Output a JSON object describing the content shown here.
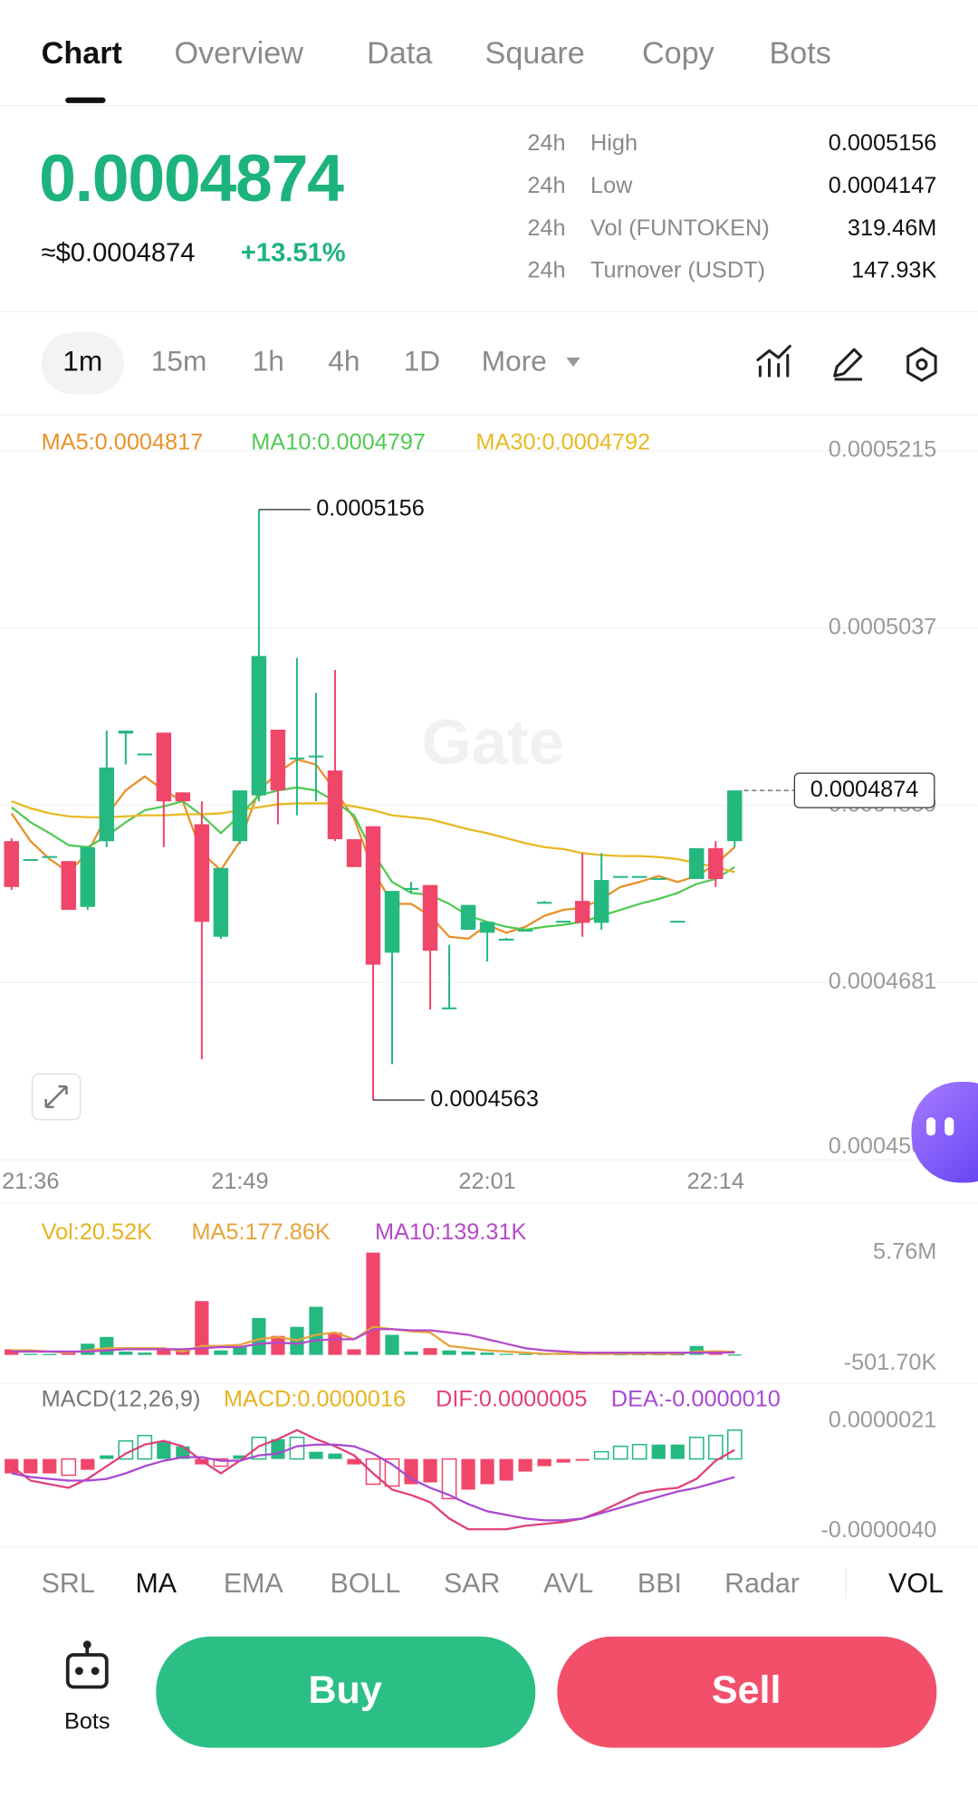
{
  "tabs": [
    "Chart",
    "Overview",
    "Data",
    "Square",
    "Copy",
    "Bots"
  ],
  "price": {
    "last": "0.0004874",
    "usd": "≈$0.0004874",
    "change": "+13.51%"
  },
  "stats": [
    {
      "period": "24h",
      "label": "High",
      "value": "0.0005156"
    },
    {
      "period": "24h",
      "label": "Low",
      "value": "0.0004147"
    },
    {
      "period": "24h",
      "label": "Vol (FUNTOKEN)",
      "value": "319.46M"
    },
    {
      "period": "24h",
      "label": "Turnover (USDT)",
      "value": "147.93K"
    }
  ],
  "intervals": [
    "1m",
    "15m",
    "1h",
    "4h",
    "1D",
    "More"
  ],
  "indicators": [
    "SRL",
    "MA",
    "EMA",
    "BOLL",
    "SAR",
    "AVL",
    "BBI",
    "Radar",
    "VOL"
  ],
  "footer": {
    "bots": "Bots",
    "buy": "Buy",
    "sell": "Sell"
  },
  "chart_data": [
    {
      "type": "candlestick",
      "watermark": "Gate",
      "up_color": "#25b87f",
      "down_color": "#f0466a",
      "categories": [
        null,
        "21:36",
        null,
        null,
        null,
        null,
        null,
        null,
        null,
        null,
        null,
        null,
        "21:49",
        null,
        null,
        null,
        null,
        null,
        null,
        null,
        null,
        null,
        null,
        null,
        null,
        "22:01",
        null,
        null,
        null,
        null,
        null,
        null,
        null,
        null,
        null,
        null,
        null,
        "22:14",
        null
      ],
      "open": [
        0.0004823,
        0.0004804,
        0.0004807,
        0.0004803,
        0.0004757,
        0.0004823,
        0.0004931,
        0.000491,
        0.0004932,
        0.0004872,
        0.000484,
        0.0004727,
        0.0004823,
        0.0004869,
        0.0004935,
        0.0004906,
        0.0004908,
        0.0004894,
        0.0004825,
        0.0004838,
        0.0004711,
        0.0004775,
        0.0004779,
        0.0004655,
        0.0004734,
        0.0004731,
        0.0004725,
        0.0004733,
        0.0004761,
        0.0004743,
        0.0004763,
        0.0004741,
        0.0004788,
        0.0004788,
        0.0004786,
        0.0004742,
        0.0004785,
        0.0004816,
        0.0004823
      ],
      "high": [
        0.0004826,
        0.0004805,
        0.0004808,
        0.0004803,
        0.0004817,
        0.0004934,
        0.0004934,
        0.0004911,
        0.0004932,
        0.0004872,
        0.0004863,
        0.0004796,
        0.0004874,
        0.0005156,
        0.0004935,
        0.0005007,
        0.0004972,
        0.0004995,
        0.0004825,
        0.0004838,
        0.0004773,
        0.0004782,
        0.0004779,
        0.0004719,
        0.0004759,
        0.0004742,
        0.0004726,
        0.0004734,
        0.0004763,
        0.0004743,
        0.0004811,
        0.0004811,
        0.0004788,
        0.0004788,
        0.0004786,
        0.0004743,
        0.0004816,
        0.0004823,
        0.0004874
      ],
      "low": [
        0.0004774,
        0.0004804,
        0.0004807,
        0.0004754,
        0.0004754,
        0.0004817,
        0.00049,
        0.000491,
        0.0004817,
        0.0004863,
        0.0004604,
        0.0004725,
        0.000482,
        0.0004863,
        0.000484,
        0.0004849,
        0.0004863,
        0.0004823,
        0.0004797,
        0.0004563,
        0.0004599,
        0.0004771,
        0.0004654,
        0.0004655,
        0.0004734,
        0.0004702,
        0.0004724,
        0.0004733,
        0.0004761,
        0.0004742,
        0.0004727,
        0.0004734,
        0.0004787,
        0.0004787,
        0.0004785,
        0.0004742,
        0.0004785,
        0.0004777,
        0.0004817
      ],
      "close": [
        0.0004777,
        0.0004805,
        0.0004808,
        0.0004754,
        0.0004817,
        0.0004897,
        0.0004934,
        0.0004911,
        0.0004863,
        0.0004863,
        0.0004742,
        0.0004796,
        0.0004874,
        0.0005009,
        0.0004874,
        0.0004907,
        0.0004909,
        0.0004825,
        0.0004797,
        0.0004699,
        0.0004773,
        0.0004776,
        0.0004713,
        0.0004656,
        0.0004759,
        0.0004742,
        0.0004725,
        0.0004734,
        0.0004762,
        0.0004743,
        0.0004741,
        0.0004784,
        0.0004788,
        0.0004788,
        0.0004786,
        0.0004743,
        0.0004816,
        0.0004785,
        0.0004874
      ],
      "series": [
        {
          "name": "MA5:0.0004817",
          "color": "#e8912c",
          "values": [
            0.0004851,
            0.0004823,
            0.0004805,
            0.0004792,
            0.0004811,
            0.0004849,
            0.0004874,
            0.0004888,
            0.0004874,
            0.0004863,
            0.0004811,
            0.0004794,
            0.0004823,
            0.0004874,
            0.0004892,
            0.0004905,
            0.00049,
            0.0004874,
            0.0004846,
            0.0004794,
            0.000476,
            0.000476,
            0.0004748,
            0.0004727,
            0.0004725,
            0.0004739,
            0.0004731,
            0.0004737,
            0.0004748,
            0.0004754,
            0.0004756,
            0.0004765,
            0.0004777,
            0.0004782,
            0.0004788,
            0.0004782,
            0.0004788,
            0.00048,
            0.0004817
          ]
        },
        {
          "name": "MA10:0.0004797",
          "color": "#53c954",
          "values": [
            0.0004857,
            0.0004842,
            0.0004831,
            0.0004819,
            0.0004817,
            0.0004828,
            0.0004842,
            0.0004854,
            0.0004858,
            0.0004863,
            0.0004849,
            0.0004831,
            0.0004849,
            0.0004869,
            0.0004874,
            0.0004877,
            0.0004874,
            0.0004863,
            0.0004849,
            0.0004811,
            0.0004782,
            0.0004771,
            0.0004769,
            0.000476,
            0.0004748,
            0.0004742,
            0.0004737,
            0.0004734,
            0.0004737,
            0.0004739,
            0.0004742,
            0.0004748,
            0.0004754,
            0.000476,
            0.0004765,
            0.0004771,
            0.000478,
            0.0004785,
            0.0004797
          ]
        },
        {
          "name": "MA30:0.0004792",
          "color": "#e8b923",
          "values": [
            0.0004863,
            0.0004856,
            0.0004851,
            0.0004848,
            0.0004847,
            0.0004847,
            0.0004848,
            0.0004849,
            0.0004849,
            0.000485,
            0.000485,
            0.0004851,
            0.0004854,
            0.0004857,
            0.000486,
            0.0004861,
            0.0004861,
            0.0004861,
            0.0004858,
            0.0004854,
            0.0004849,
            0.0004847,
            0.0004845,
            0.000484,
            0.0004835,
            0.0004831,
            0.0004826,
            0.0004821,
            0.0004817,
            0.0004815,
            0.0004811,
            0.0004809,
            0.0004808,
            0.0004808,
            0.0004807,
            0.0004805,
            0.0004801,
            0.0004797,
            0.0004792
          ]
        }
      ],
      "ylim": [
        0.0004503,
        0.000525
      ],
      "yticks": [
        0.0005215,
        0.0005037,
        0.0004859,
        0.0004681,
        0.0004503
      ],
      "grid": true
    },
    {
      "type": "bar",
      "series": [
        {
          "name": "Vol:20.52K",
          "color": "#e6b422",
          "style": "bar",
          "values": [
            315000,
            60000,
            50000,
            190000,
            630000,
            1010000,
            190000,
            130000,
            315000,
            250000,
            3030000,
            250000,
            500000,
            2080000,
            1070000,
            1580000,
            2710000,
            1260000,
            315000,
            5760000,
            1130000,
            190000,
            380000,
            250000,
            190000,
            130000,
            60000,
            60000,
            60000,
            60000,
            60000,
            60000,
            40000,
            40000,
            40000,
            40000,
            500000,
            250000,
            20520
          ]
        },
        {
          "name": "MA5:177.86K",
          "color": "#e8a33a",
          "style": "line",
          "values": [
            252000,
            252000,
            189000,
            126000,
            252000,
            378000,
            378000,
            378000,
            378000,
            189000,
            504000,
            504000,
            567000,
            882000,
            1008000,
            819000,
            1134000,
            1260000,
            882000,
            1575000,
            1449000,
            1323000,
            1260000,
            504000,
            378000,
            252000,
            189000,
            126000,
            63000,
            63000,
            63000,
            63000,
            63000,
            63000,
            63000,
            63000,
            189000,
            189000,
            177860
          ]
        },
        {
          "name": "MA10:139.31K",
          "color": "#b44ac8",
          "style": "line",
          "values": [
            189000,
            189000,
            189000,
            189000,
            189000,
            252000,
            315000,
            315000,
            315000,
            315000,
            378000,
            441000,
            441000,
            630000,
            693000,
            630000,
            819000,
            882000,
            882000,
            1449000,
            1449000,
            1386000,
            1386000,
            1260000,
            1134000,
            882000,
            630000,
            378000,
            252000,
            189000,
            126000,
            126000,
            126000,
            126000,
            126000,
            126000,
            126000,
            126000,
            139310
          ]
        }
      ],
      "ylim": [
        -501700,
        5760000
      ],
      "yticks": [
        {
          "value": 5760000,
          "label": "5.76M"
        },
        {
          "value": -501700,
          "label": "-501.70K"
        }
      ]
    },
    {
      "type": "bar",
      "title": "MACD(12,26,9)",
      "series": [
        {
          "name": "MACD:0.0000016",
          "color": "#e6b422",
          "style": "bar",
          "values": [
            -8e-07,
            -8e-07,
            -8e-07,
            -9e-07,
            -6e-07,
            2e-07,
            1e-06,
            1.3e-06,
            1e-06,
            7e-07,
            -3e-07,
            -4e-07,
            2e-07,
            1.2e-06,
            1.1e-06,
            1.2e-06,
            4e-07,
            3e-07,
            -3e-07,
            -1.4e-06,
            -1.5e-06,
            -1.4e-06,
            -1.3e-06,
            -2.2e-06,
            -1.7e-06,
            -1.4e-06,
            -1.2e-06,
            -7e-07,
            -4e-07,
            -2e-07,
            -1e-07,
            4e-07,
            7e-07,
            8e-07,
            8e-07,
            8e-07,
            1.2e-06,
            1.3e-06,
            1.6e-06
          ]
        },
        {
          "name": "DIF:0.0000005",
          "color": "#e0407a",
          "style": "line",
          "values": [
            -4e-07,
            -1.2e-06,
            -1.4e-06,
            -1.6e-06,
            -1.1e-06,
            -4e-07,
            3e-07,
            8e-07,
            1e-06,
            7e-07,
            -1e-07,
            -8e-07,
            -1e-07,
            7e-07,
            1.1e-06,
            1.6e-06,
            1.1e-06,
            7e-07,
            2e-07,
            -8e-07,
            -1.7e-06,
            -2e-06,
            -2.4e-06,
            -3.3e-06,
            -3.9e-06,
            -3.9e-06,
            -3.9e-06,
            -3.7e-06,
            -3.6e-06,
            -3.5e-06,
            -3.3e-06,
            -2.9e-06,
            -2.4e-06,
            -1.9e-06,
            -1.7e-06,
            -1.6e-06,
            -1.1e-06,
            -1e-07,
            5e-07
          ]
        },
        {
          "name": "DEA:-0.0000010",
          "color": "#a84ad0",
          "style": "line",
          "values": [
            -8e-07,
            -1e-06,
            -1.1e-06,
            -1.2e-06,
            -1.2e-06,
            -1.1e-06,
            -8e-07,
            -4e-07,
            -1e-07,
            1e-07,
            1e-07,
            -1e-07,
            -1e-07,
            2e-07,
            3e-07,
            7e-07,
            8e-07,
            8e-07,
            7e-07,
            3e-07,
            -3e-07,
            -1.1e-06,
            -1.6e-06,
            -2e-06,
            -2.5e-06,
            -2.9e-06,
            -3.1e-06,
            -3.3e-06,
            -3.4e-06,
            -3.4e-06,
            -3.3e-06,
            -3e-06,
            -2.7e-06,
            -2.4e-06,
            -2.1e-06,
            -1.8e-06,
            -1.6e-06,
            -1.3e-06,
            -1e-06
          ]
        }
      ],
      "ylim": [
        -4e-06,
        2.1e-06
      ],
      "yticks": [
        2.1e-06,
        {
          "value": -4e-06,
          "label": "-0.0000040"
        }
      ]
    }
  ]
}
